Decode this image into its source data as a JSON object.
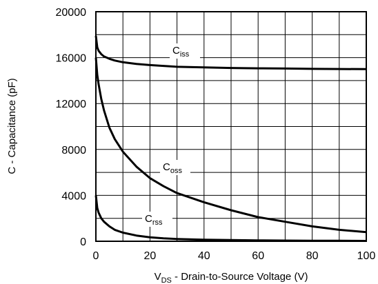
{
  "chart_data": {
    "type": "line",
    "xlabel": {
      "main": "V",
      "sub": "DS",
      "rest": " - Drain-to-Source Voltage (V)"
    },
    "ylabel": "C - Capacitance (pF)",
    "xlim": [
      0,
      100
    ],
    "ylim": [
      0,
      20000
    ],
    "xticks": [
      0,
      20,
      40,
      60,
      80,
      100
    ],
    "yticks": [
      0,
      4000,
      8000,
      12000,
      16000,
      20000
    ],
    "xtick_labels": [
      "0",
      "20",
      "40",
      "60",
      "80",
      "100"
    ],
    "ytick_labels": [
      "0",
      "4000",
      "8000",
      "12000",
      "16000",
      "20000"
    ],
    "grid": true,
    "series": [
      {
        "name": "Ciss",
        "label_main": "C",
        "label_sub": "iss",
        "x": [
          0,
          0.5,
          1,
          2,
          3,
          5,
          7,
          10,
          15,
          20,
          25,
          30,
          40,
          50,
          60,
          70,
          80,
          90,
          100
        ],
        "values": [
          17900,
          16900,
          16600,
          16300,
          16100,
          15900,
          15750,
          15600,
          15450,
          15350,
          15280,
          15200,
          15150,
          15100,
          15070,
          15050,
          15020,
          15010,
          15000
        ]
      },
      {
        "name": "Coss",
        "label_main": "C",
        "label_sub": "oss",
        "x": [
          0,
          0.5,
          1,
          2,
          3,
          5,
          7,
          10,
          15,
          20,
          25,
          30,
          40,
          50,
          60,
          70,
          80,
          90,
          100
        ],
        "values": [
          16000,
          14500,
          13700,
          12400,
          11400,
          9900,
          8900,
          7800,
          6500,
          5500,
          4800,
          4200,
          3400,
          2700,
          2100,
          1700,
          1300,
          1000,
          800
        ]
      },
      {
        "name": "Crss",
        "label_main": "C",
        "label_sub": "rss",
        "x": [
          0,
          0.5,
          1,
          2,
          3,
          5,
          7,
          10,
          15,
          20,
          25,
          30,
          40,
          50,
          60,
          70,
          80,
          90,
          100
        ],
        "values": [
          4000,
          2900,
          2500,
          2000,
          1700,
          1300,
          1000,
          750,
          500,
          350,
          250,
          200,
          130,
          100,
          80,
          60,
          50,
          40,
          30
        ]
      }
    ]
  }
}
